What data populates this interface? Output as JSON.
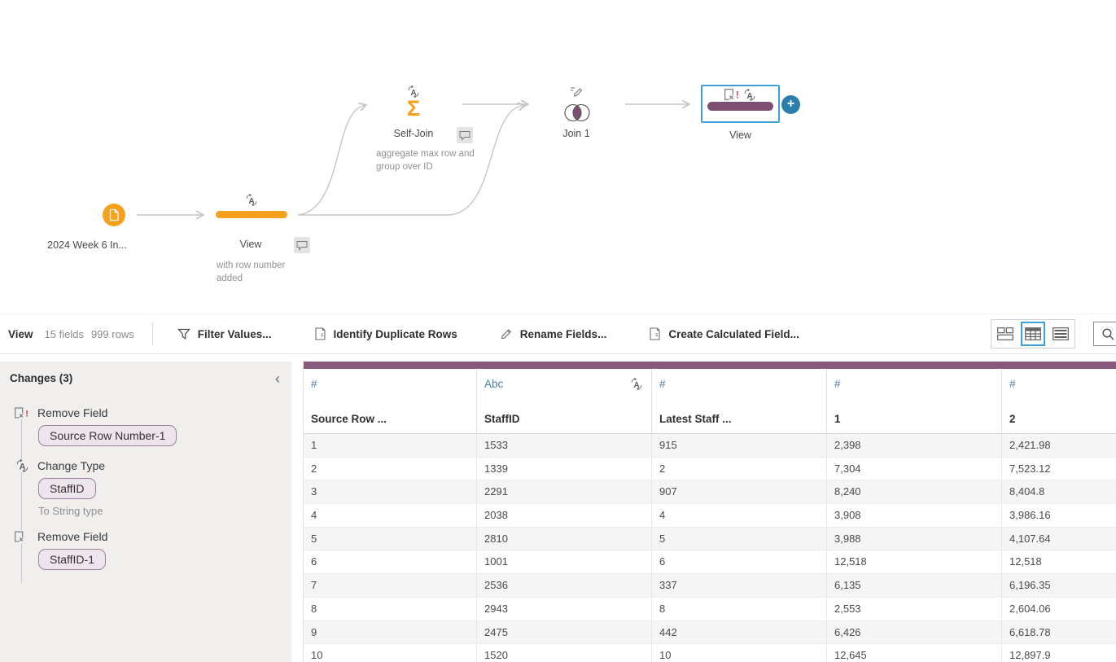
{
  "flow": {
    "input_node": {
      "label": "2024 Week 6 In..."
    },
    "clean_step_1": {
      "label": "View",
      "annotation": "with row number added"
    },
    "aggregate_step": {
      "label": "Self-Join",
      "annotation": "aggregate max row and group over ID"
    },
    "join_step": {
      "label": "Join 1"
    },
    "clean_step_2": {
      "label": "View"
    }
  },
  "toolbar": {
    "pane_title": "View",
    "field_count": "15 fields",
    "row_count": "999 rows",
    "filter_button": "Filter Values...",
    "identify_duplicates_button": "Identify Duplicate Rows",
    "rename_button": "Rename Fields...",
    "calculated_field_button": "Create Calculated Field..."
  },
  "changes_panel": {
    "title": "Changes (3)",
    "items": [
      {
        "action": "Remove Field",
        "field": "Source Row Number-1"
      },
      {
        "action": "Change Type",
        "field": "StaffID",
        "detail": "To String type"
      },
      {
        "action": "Remove Field",
        "field": "StaffID-1"
      }
    ]
  },
  "grid": {
    "columns": [
      {
        "type": "#",
        "name": "Source Row ..."
      },
      {
        "type": "Abc",
        "name": "StaffID"
      },
      {
        "type": "#",
        "name": "Latest Staff ..."
      },
      {
        "type": "#",
        "name": "1"
      },
      {
        "type": "#",
        "name": "2"
      }
    ],
    "rows": [
      [
        "1",
        "1533",
        "915",
        "2,398",
        "2,421.98"
      ],
      [
        "2",
        "1339",
        "2",
        "7,304",
        "7,523.12"
      ],
      [
        "3",
        "2291",
        "907",
        "8,240",
        "8,404.8"
      ],
      [
        "4",
        "2038",
        "4",
        "3,908",
        "3,986.16"
      ],
      [
        "5",
        "2810",
        "5",
        "3,988",
        "4,107.64"
      ],
      [
        "6",
        "1001",
        "6",
        "12,518",
        "12,518"
      ],
      [
        "7",
        "2536",
        "337",
        "6,135",
        "6,196.35"
      ],
      [
        "8",
        "2943",
        "8",
        "2,553",
        "2,604.06"
      ],
      [
        "9",
        "2475",
        "442",
        "6,426",
        "6,618.78"
      ],
      [
        "10",
        "1520",
        "10",
        "12,645",
        "12,897.9"
      ]
    ]
  },
  "colors": {
    "accent_orange": "#f6a11e",
    "step_purple": "#7d4e71",
    "scroll_strip_purple": "#875a7d",
    "selection_blue": "#3fa0d9",
    "field_type_blue": "#4a7fa6",
    "add_button_blue": "#2d7fab",
    "alert_red": "#d63b47"
  }
}
